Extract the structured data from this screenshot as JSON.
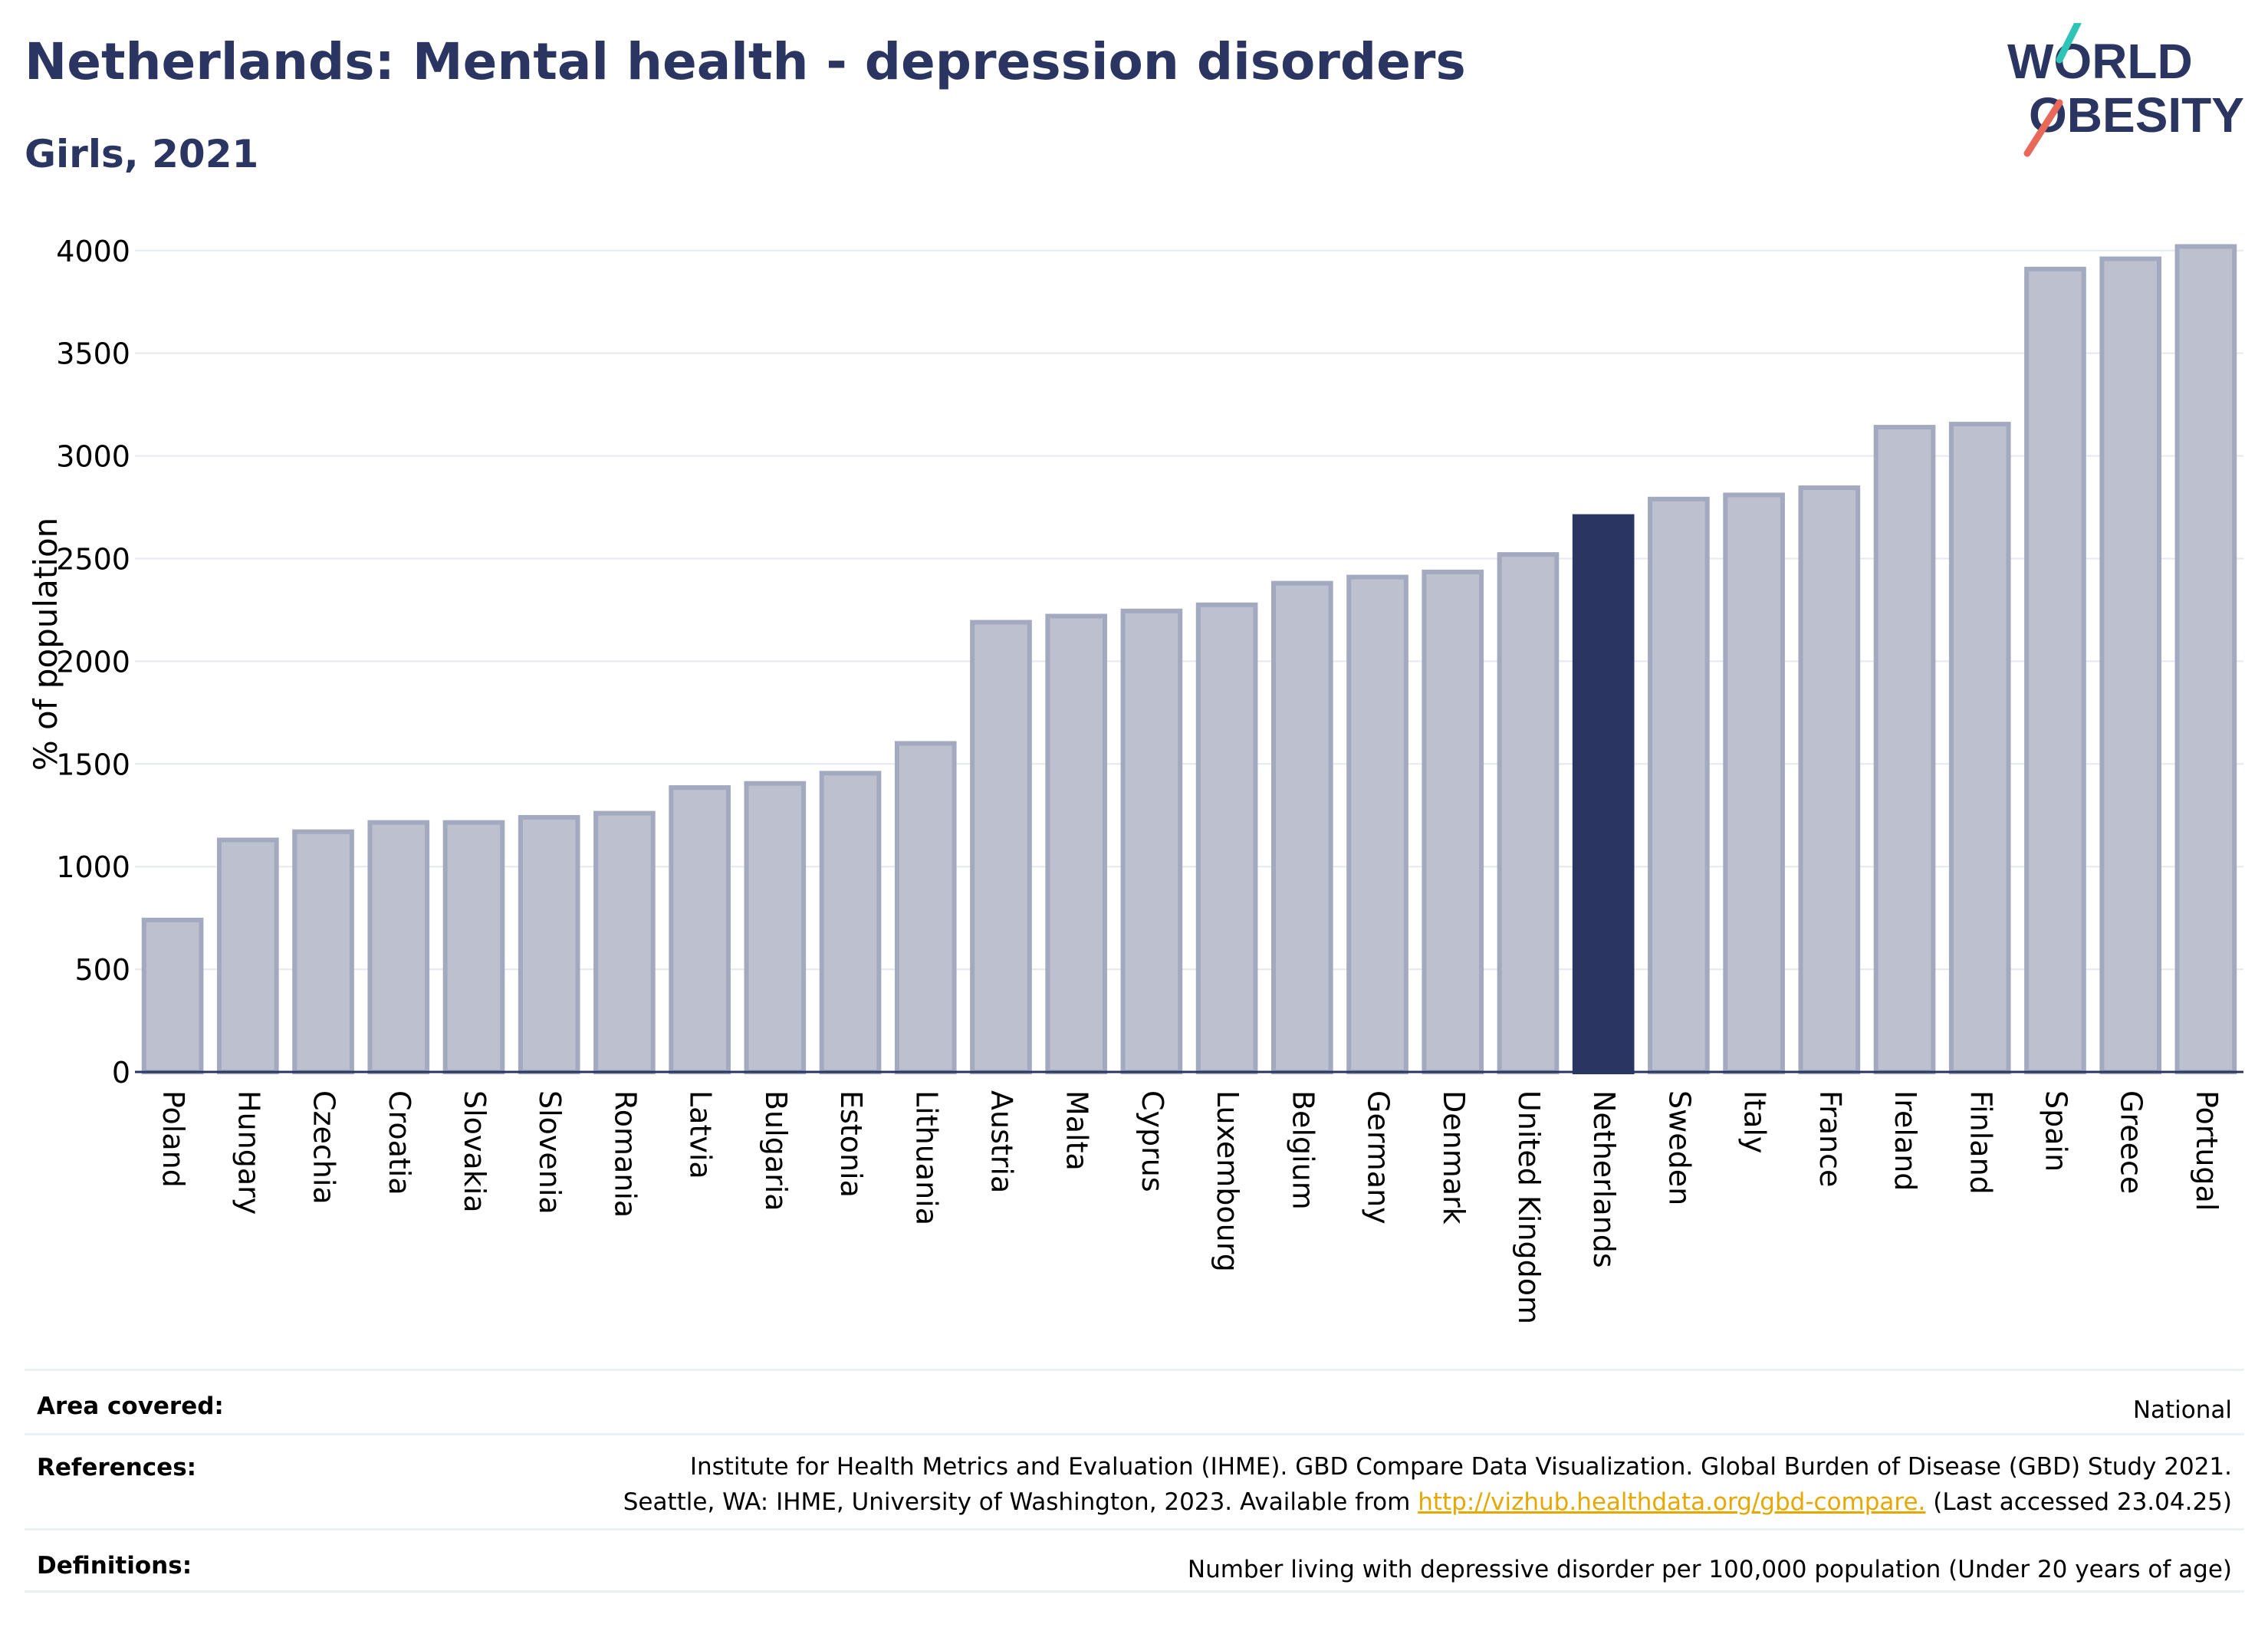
{
  "header": {
    "title": "Netherlands: Mental health - depression disorders",
    "subtitle": "Girls, 2021",
    "logo_line1": "WORLD",
    "logo_line2": "OBESITY"
  },
  "colors": {
    "title": "#2b3562",
    "bar": "#bcc0cf",
    "bar_border": "#a3a9be",
    "highlight": "#2b3562",
    "grid": "#e6e8ef",
    "link": "#e6a800",
    "logo_teal": "#2ec4b6",
    "logo_coral": "#e8695a"
  },
  "chart_data": {
    "type": "bar",
    "ylabel": "% of population",
    "xlabel": "",
    "ylim": [
      0,
      4100
    ],
    "yticks": [
      0,
      500,
      1000,
      1500,
      2000,
      2500,
      3000,
      3500,
      4000
    ],
    "grid": true,
    "highlight": "Netherlands",
    "categories": [
      "Poland",
      "Hungary",
      "Czechia",
      "Croatia",
      "Slovakia",
      "Slovenia",
      "Romania",
      "Latvia",
      "Bulgaria",
      "Estonia",
      "Lithuania",
      "Austria",
      "Malta",
      "Cyprus",
      "Luxembourg",
      "Belgium",
      "Germany",
      "Denmark",
      "United Kingdom",
      "Netherlands",
      "Sweden",
      "Italy",
      "France",
      "Ireland",
      "Finland",
      "Spain",
      "Greece",
      "Portugal"
    ],
    "values": [
      740,
      1130,
      1170,
      1215,
      1215,
      1240,
      1260,
      1385,
      1405,
      1455,
      1600,
      2190,
      2220,
      2245,
      2275,
      2380,
      2410,
      2435,
      2520,
      2705,
      2790,
      2810,
      2845,
      3140,
      3155,
      3910,
      3960,
      4020
    ]
  },
  "info": {
    "area_label": "Area covered:",
    "area_value": "National",
    "references_label": "References:",
    "references_line1": "Institute for Health Metrics and Evaluation (IHME). GBD Compare Data Visualization. Global Burden of Disease (GBD) Study 2021.",
    "references_line2_pre": "Seattle, WA: IHME, University of Washington, 2023. Available from ",
    "references_link": "http://vizhub.healthdata.org/gbd-compare.",
    "references_line2_post": " (Last accessed 23.04.25)",
    "definitions_label": "Definitions:",
    "definitions_value": "Number living with depressive disorder per 100,000 population (Under 20 years of age)"
  }
}
